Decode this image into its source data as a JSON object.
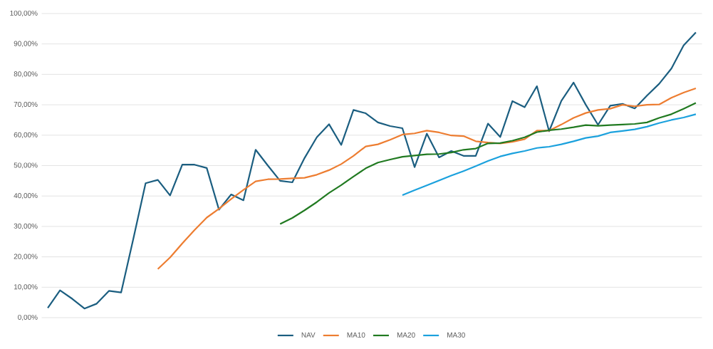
{
  "chart_data": {
    "type": "line",
    "categories": [
      null,
      null,
      null,
      null,
      null,
      null,
      null,
      null,
      null,
      null,
      null,
      null,
      null,
      null,
      null,
      null,
      null,
      null,
      null,
      null,
      null,
      null,
      null,
      null,
      null,
      null,
      null,
      null,
      null,
      null,
      null,
      null,
      null,
      null,
      null,
      null,
      null,
      null,
      null,
      null,
      null,
      null,
      null,
      null,
      null,
      null,
      null,
      null,
      null,
      null,
      null,
      null,
      null,
      null
    ],
    "series": [
      {
        "name": "NAV",
        "color": "#1b5e80",
        "values": [
          3.2,
          9.0,
          6.2,
          3.0,
          4.6,
          8.8,
          8.3,
          26,
          44.2,
          45.3,
          40.2,
          50.3,
          50.3,
          49.2,
          35.5,
          40.5,
          38.6,
          55.2,
          50,
          45,
          44.5,
          52.5,
          59.3,
          63.6,
          56.8,
          68.3,
          67.2,
          64.2,
          63,
          62.3,
          49.5,
          60.5,
          52.7,
          54.8,
          53.2,
          53.2,
          63.8,
          59.4,
          71.2,
          69.2,
          76.1,
          61.3,
          71.3,
          77.3,
          70,
          63.4,
          69.7,
          70.3,
          68.8,
          73,
          76.9,
          81.9,
          89.5,
          93.8
        ]
      },
      {
        "name": "MA10",
        "color": "#ed7d31",
        "values": [
          null,
          null,
          null,
          null,
          null,
          null,
          null,
          null,
          null,
          16.0,
          19.8,
          24.4,
          28.8,
          32.9,
          35.8,
          39.0,
          42,
          44.8,
          45.5,
          45.6,
          45.8,
          46.0,
          47,
          48.5,
          50.5,
          53.2,
          56.3,
          57.0,
          58.5,
          60.2,
          60.6,
          61.5,
          60.9,
          59.9,
          59.7,
          58.0,
          57.6,
          57.3,
          57.8,
          58.7,
          61.5,
          61.5,
          63.5,
          65.7,
          67.3,
          68.3,
          68.7,
          70,
          69.5,
          70,
          70.1,
          72.3,
          74,
          75.4
        ]
      },
      {
        "name": "MA20",
        "color": "#217a21",
        "values": [
          null,
          null,
          null,
          null,
          null,
          null,
          null,
          null,
          null,
          null,
          null,
          null,
          null,
          null,
          null,
          null,
          null,
          null,
          null,
          30.8,
          32.8,
          35.3,
          38.0,
          41.0,
          43.6,
          46.4,
          49.1,
          51.0,
          52.0,
          52.9,
          53.3,
          53.7,
          53.8,
          54.3,
          55.2,
          55.6,
          57.3,
          57.4,
          58.2,
          59.3,
          61.0,
          61.6,
          62.0,
          62.6,
          63.3,
          63.1,
          63.3,
          63.5,
          63.7,
          64.2,
          65.7,
          66.9,
          68.7,
          70.6
        ]
      },
      {
        "name": "MA30",
        "color": "#1ba1dd",
        "values": [
          null,
          null,
          null,
          null,
          null,
          null,
          null,
          null,
          null,
          null,
          null,
          null,
          null,
          null,
          null,
          null,
          null,
          null,
          null,
          null,
          null,
          null,
          null,
          null,
          null,
          null,
          null,
          null,
          null,
          40.3,
          41.9,
          43.5,
          45.1,
          46.7,
          48.2,
          49.8,
          51.5,
          53.0,
          54.0,
          54.8,
          55.8,
          56.2,
          57.0,
          58.0,
          59.1,
          59.7,
          60.9,
          61.4,
          61.9,
          62.8,
          64.0,
          65.0,
          65.8,
          66.9
        ]
      }
    ],
    "ylim": [
      0,
      100
    ],
    "yticks": [
      {
        "value": 0,
        "label": "0,00%"
      },
      {
        "value": 10,
        "label": "10,00%"
      },
      {
        "value": 20,
        "label": "20,00%"
      },
      {
        "value": 30,
        "label": "30,00%"
      },
      {
        "value": 40,
        "label": "40,00%"
      },
      {
        "value": 50,
        "label": "50,00%"
      },
      {
        "value": 60,
        "label": "60,00%"
      },
      {
        "value": 70,
        "label": "70,00%"
      },
      {
        "value": 80,
        "label": "80,00%"
      },
      {
        "value": 90,
        "label": "90,00%"
      },
      {
        "value": 100,
        "label": "100,00%"
      }
    ],
    "grid": "y",
    "legend": "bottom",
    "tick_labels": "y"
  }
}
